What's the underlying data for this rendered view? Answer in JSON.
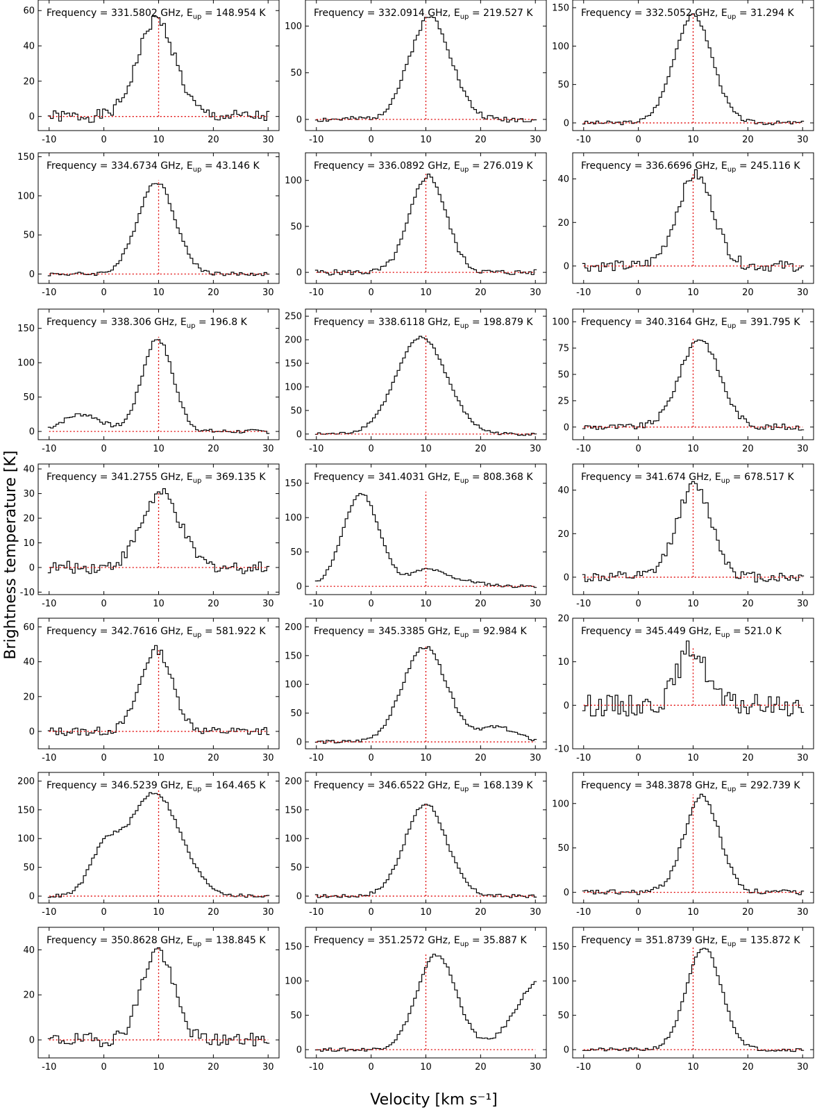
{
  "figure": {
    "xlabel": "Velocity [km s⁻¹]",
    "ylabel": "Brightness temperature [K]"
  },
  "chart_data": [
    {
      "type": "line",
      "freq": "331.5802",
      "eup": "148.954",
      "ylim": [
        -8,
        66
      ],
      "yticks": [
        0,
        20,
        40,
        60
      ],
      "xlim": [
        -12,
        32
      ],
      "xticks": [
        -10,
        0,
        10,
        20,
        30
      ],
      "vref": 10,
      "peak": 55,
      "center": 9.6,
      "sigma": 3.4,
      "noise": 3.5,
      "seed": 1
    },
    {
      "type": "line",
      "freq": "332.0914",
      "eup": "219.527",
      "ylim": [
        -12,
        128
      ],
      "yticks": [
        0,
        50,
        100
      ],
      "xlim": [
        -12,
        32
      ],
      "xticks": [
        -10,
        0,
        10,
        20,
        30
      ],
      "vref": 10,
      "peak": 110,
      "center": 10.8,
      "sigma": 3.8,
      "noise": 3,
      "seed": 2
    },
    {
      "type": "line",
      "freq": "332.5052",
      "eup": "31.294",
      "ylim": [
        -10,
        160
      ],
      "yticks": [
        0,
        50,
        100,
        150
      ],
      "xlim": [
        -12,
        32
      ],
      "xticks": [
        -10,
        0,
        10,
        20,
        30
      ],
      "vref": 10,
      "peak": 140,
      "center": 10,
      "sigma": 3.5,
      "noise": 2.5,
      "seed": 3
    },
    {
      "type": "line",
      "freq": "334.6734",
      "eup": "43.146",
      "ylim": [
        -12,
        155
      ],
      "yticks": [
        0,
        50,
        100,
        150
      ],
      "xlim": [
        -12,
        32
      ],
      "xticks": [
        -10,
        0,
        10,
        20,
        30
      ],
      "vref": 10,
      "peak": 118,
      "center": 9.6,
      "sigma": 3.4,
      "noise": 2.5,
      "seed": 4
    },
    {
      "type": "line",
      "freq": "336.0892",
      "eup": "276.019",
      "ylim": [
        -12,
        130
      ],
      "yticks": [
        0,
        50,
        100
      ],
      "xlim": [
        -12,
        32
      ],
      "xticks": [
        -10,
        0,
        10,
        20,
        30
      ],
      "vref": 10,
      "peak": 105,
      "center": 10.4,
      "sigma": 3.3,
      "noise": 3,
      "seed": 5
    },
    {
      "type": "line",
      "freq": "336.6696",
      "eup": "245.116",
      "ylim": [
        -8,
        52
      ],
      "yticks": [
        0,
        20,
        40
      ],
      "xlim": [
        -12,
        32
      ],
      "xticks": [
        -10,
        0,
        10,
        20,
        30
      ],
      "vref": 10,
      "peak": 42,
      "center": 10.4,
      "sigma": 3.3,
      "noise": 2.5,
      "seed": 6
    },
    {
      "type": "line",
      "freq": "338.306",
      "eup": "196.8",
      "ylim": [
        -12,
        178
      ],
      "yticks": [
        0,
        50,
        100,
        150
      ],
      "xlim": [
        -12,
        32
      ],
      "xticks": [
        -10,
        0,
        10,
        20,
        30
      ],
      "vref": 10,
      "peak": 135,
      "center": 9.8,
      "sigma": 2.8,
      "noise": 3,
      "seed": 7
    },
    {
      "type": "line",
      "freq": "338.6118",
      "eup": "198.879",
      "ylim": [
        -12,
        265
      ],
      "yticks": [
        0,
        50,
        100,
        150,
        200,
        250
      ],
      "xlim": [
        -12,
        32
      ],
      "xticks": [
        -10,
        0,
        10,
        20,
        30
      ],
      "vref": 10,
      "peak": 205,
      "center": 9.2,
      "sigma": 4.6,
      "noise": 3,
      "seed": 8
    },
    {
      "type": "line",
      "freq": "340.3164",
      "eup": "391.795",
      "ylim": [
        -12,
        112
      ],
      "yticks": [
        0,
        25,
        50,
        75,
        100
      ],
      "xlim": [
        -12,
        32
      ],
      "xticks": [
        -10,
        0,
        10,
        20,
        30
      ],
      "vref": 10,
      "peak": 84,
      "center": 11.2,
      "sigma": 3.6,
      "noise": 3,
      "seed": 9
    },
    {
      "type": "line",
      "freq": "341.2755",
      "eup": "369.135",
      "ylim": [
        -11,
        42
      ],
      "yticks": [
        -10,
        0,
        10,
        20,
        30,
        40
      ],
      "xlim": [
        -12,
        32
      ],
      "xticks": [
        -10,
        0,
        10,
        20,
        30
      ],
      "vref": 10,
      "peak": 30,
      "center": 10.4,
      "sigma": 3.5,
      "noise": 2.5,
      "seed": 10
    },
    {
      "type": "line",
      "freq": "341.4031",
      "eup": "808.368",
      "ylim": [
        -12,
        178
      ],
      "yticks": [
        0,
        50,
        100,
        150
      ],
      "xlim": [
        -12,
        32
      ],
      "xticks": [
        -10,
        0,
        10,
        20,
        30
      ],
      "vref": 10,
      "peak": 135,
      "center": -1.8,
      "sigma": 3.3,
      "noise": 2,
      "seed": 11
    },
    {
      "type": "line",
      "freq": "341.674",
      "eup": "678.517",
      "ylim": [
        -8,
        52
      ],
      "yticks": [
        0,
        20,
        40
      ],
      "xlim": [
        -12,
        32
      ],
      "xticks": [
        -10,
        0,
        10,
        20,
        30
      ],
      "vref": 10,
      "peak": 42,
      "center": 10.2,
      "sigma": 3.2,
      "noise": 2.5,
      "seed": 12
    },
    {
      "type": "line",
      "freq": "342.7616",
      "eup": "581.922",
      "ylim": [
        -10,
        65
      ],
      "yticks": [
        0,
        20,
        40,
        60
      ],
      "xlim": [
        -12,
        32
      ],
      "xticks": [
        -10,
        0,
        10,
        20,
        30
      ],
      "vref": 10,
      "peak": 47,
      "center": 9.6,
      "sigma": 2.9,
      "noise": 2.5,
      "seed": 13
    },
    {
      "type": "line",
      "freq": "345.3385",
      "eup": "92.984",
      "ylim": [
        -12,
        215
      ],
      "yticks": [
        0,
        50,
        100,
        150,
        200
      ],
      "xlim": [
        -12,
        32
      ],
      "xticks": [
        -10,
        0,
        10,
        20,
        30
      ],
      "vref": 10,
      "peak": 165,
      "center": 9.8,
      "sigma": 4.0,
      "noise": 3,
      "seed": 14
    },
    {
      "type": "line",
      "freq": "345.449",
      "eup": "521.0",
      "ylim": [
        -10,
        20
      ],
      "yticks": [
        -10,
        0,
        10,
        20
      ],
      "xlim": [
        -12,
        32
      ],
      "xticks": [
        -10,
        0,
        10,
        20,
        30
      ],
      "vref": 10,
      "peak": 13,
      "center": 9.8,
      "sigma": 2.6,
      "noise": 2.5,
      "seed": 15
    },
    {
      "type": "line",
      "freq": "346.5239",
      "eup": "164.465",
      "ylim": [
        -12,
        215
      ],
      "yticks": [
        0,
        50,
        100,
        150,
        200
      ],
      "xlim": [
        -12,
        32
      ],
      "xticks": [
        -10,
        0,
        10,
        20,
        30
      ],
      "vref": 10,
      "peak": 180,
      "center": 9.2,
      "sigma": 4.8,
      "noise": 3,
      "seed": 16
    },
    {
      "type": "line",
      "freq": "346.6522",
      "eup": "168.139",
      "ylim": [
        -12,
        215
      ],
      "yticks": [
        0,
        50,
        100,
        150,
        200
      ],
      "xlim": [
        -12,
        32
      ],
      "xticks": [
        -10,
        0,
        10,
        20,
        30
      ],
      "vref": 10,
      "peak": 160,
      "center": 10,
      "sigma": 3.8,
      "noise": 3,
      "seed": 17
    },
    {
      "type": "line",
      "freq": "348.3878",
      "eup": "292.739",
      "ylim": [
        -12,
        135
      ],
      "yticks": [
        0,
        50,
        100
      ],
      "xlim": [
        -12,
        32
      ],
      "xticks": [
        -10,
        0,
        10,
        20,
        30
      ],
      "vref": 10,
      "peak": 108,
      "center": 11.6,
      "sigma": 3.2,
      "noise": 3,
      "seed": 18
    },
    {
      "type": "line",
      "freq": "350.8628",
      "eup": "138.845",
      "ylim": [
        -8,
        50
      ],
      "yticks": [
        0,
        20,
        40
      ],
      "xlim": [
        -12,
        32
      ],
      "xticks": [
        -10,
        0,
        10,
        20,
        30
      ],
      "vref": 10,
      "peak": 40,
      "center": 9.8,
      "sigma": 2.9,
      "noise": 3,
      "seed": 19
    },
    {
      "type": "line",
      "freq": "351.2572",
      "eup": "35.887",
      "ylim": [
        -12,
        178
      ],
      "yticks": [
        0,
        50,
        100,
        150
      ],
      "xlim": [
        -12,
        32
      ],
      "xticks": [
        -10,
        0,
        10,
        20,
        30
      ],
      "vref": 10,
      "peak": 138,
      "center": 12,
      "sigma": 3.6,
      "noise": 2.5,
      "seed": 20
    },
    {
      "type": "line",
      "freq": "351.8739",
      "eup": "135.872",
      "ylim": [
        -12,
        178
      ],
      "yticks": [
        0,
        50,
        100,
        150
      ],
      "xlim": [
        -12,
        32
      ],
      "xticks": [
        -10,
        0,
        10,
        20,
        30
      ],
      "vref": 10,
      "peak": 148,
      "center": 12,
      "sigma": 3.2,
      "noise": 2.5,
      "seed": 21
    }
  ]
}
